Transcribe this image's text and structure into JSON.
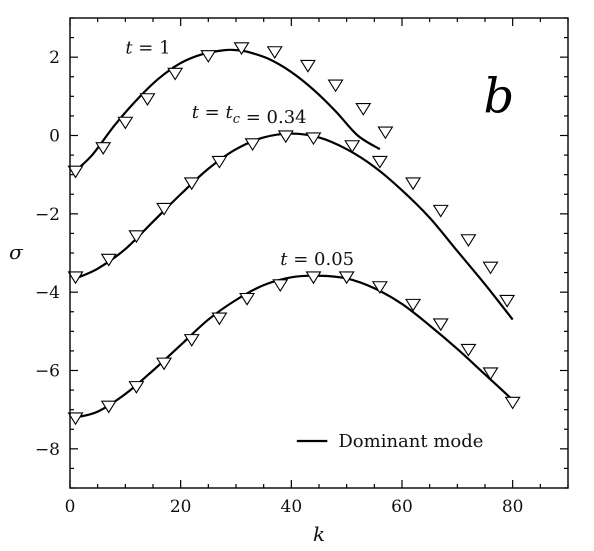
{
  "chart_data": {
    "type": "line",
    "title": "",
    "panel_label": "b",
    "xlabel": "k",
    "ylabel": "σ",
    "xlim": [
      0,
      90
    ],
    "ylim": [
      -9,
      3
    ],
    "x_ticks": [
      0,
      20,
      40,
      60,
      80
    ],
    "x_tick_labels": [
      "0",
      "20",
      "40",
      "60",
      "80"
    ],
    "y_ticks": [
      2,
      0,
      -2,
      -4,
      -6,
      -8
    ],
    "y_tick_labels": [
      "2",
      "0",
      "−2",
      "−4",
      "−6",
      "−8"
    ],
    "legend": {
      "label": "Dominant mode",
      "position": "bottom-right"
    },
    "series": [
      {
        "label_parts": [
          [
            "t",
            true
          ],
          [
            " = 1",
            false
          ]
        ],
        "label_anchor": [
          10,
          2.1
        ],
        "curve": {
          "x": [
            1,
            4,
            8,
            12,
            16,
            20,
            24,
            28,
            30,
            32,
            36,
            40,
            44,
            48,
            52,
            56
          ],
          "y": [
            -0.9,
            -0.5,
            0.25,
            0.9,
            1.45,
            1.85,
            2.08,
            2.18,
            2.18,
            2.14,
            1.95,
            1.62,
            1.17,
            0.62,
            0.0,
            -0.35
          ]
        },
        "markers": {
          "x": [
            1,
            6,
            10,
            14,
            19,
            25,
            31,
            37,
            43,
            48,
            53,
            57
          ],
          "y": [
            -0.9,
            -0.3,
            0.35,
            0.95,
            1.6,
            2.05,
            2.25,
            2.15,
            1.8,
            1.3,
            0.7,
            0.1
          ]
        }
      },
      {
        "label_parts": [
          [
            "t",
            true
          ],
          [
            " = ",
            false
          ],
          [
            "t",
            true,
            "c"
          ],
          [
            " = 0.34",
            false
          ]
        ],
        "label_anchor": [
          22,
          0.45
        ],
        "curve": {
          "x": [
            1,
            5,
            10,
            15,
            20,
            25,
            30,
            35,
            40,
            45,
            50,
            55,
            60,
            65,
            70,
            75,
            80
          ],
          "y": [
            -3.65,
            -3.4,
            -2.9,
            -2.2,
            -1.5,
            -0.85,
            -0.35,
            -0.05,
            0.05,
            -0.05,
            -0.35,
            -0.8,
            -1.4,
            -2.1,
            -2.95,
            -3.8,
            -4.7
          ]
        },
        "markers": {
          "x": [
            1,
            7,
            12,
            17,
            22,
            27,
            33,
            39,
            44,
            51,
            56,
            62,
            67,
            72,
            76,
            79
          ],
          "y": [
            -3.6,
            -3.15,
            -2.55,
            -1.85,
            -1.2,
            -0.65,
            -0.2,
            0.0,
            -0.05,
            -0.25,
            -0.65,
            -1.2,
            -1.9,
            -2.65,
            -3.35,
            -4.2
          ]
        }
      },
      {
        "label_parts": [
          [
            "t",
            true
          ],
          [
            " = 0.05",
            false
          ]
        ],
        "label_anchor": [
          38,
          -3.3
        ],
        "curve": {
          "x": [
            1,
            5,
            10,
            15,
            20,
            25,
            30,
            35,
            40,
            45,
            50,
            55,
            60,
            65,
            70,
            75,
            80
          ],
          "y": [
            -7.2,
            -7.05,
            -6.6,
            -6.0,
            -5.35,
            -4.7,
            -4.2,
            -3.82,
            -3.62,
            -3.58,
            -3.65,
            -3.9,
            -4.3,
            -4.85,
            -5.45,
            -6.1,
            -6.75
          ]
        },
        "markers": {
          "x": [
            1,
            7,
            12,
            17,
            22,
            27,
            32,
            38,
            44,
            50,
            56,
            62,
            67,
            72,
            76,
            80
          ],
          "y": [
            -7.2,
            -6.9,
            -6.4,
            -5.8,
            -5.2,
            -4.65,
            -4.15,
            -3.8,
            -3.6,
            -3.6,
            -3.85,
            -4.3,
            -4.8,
            -5.45,
            -6.05,
            -6.8
          ]
        }
      }
    ]
  }
}
